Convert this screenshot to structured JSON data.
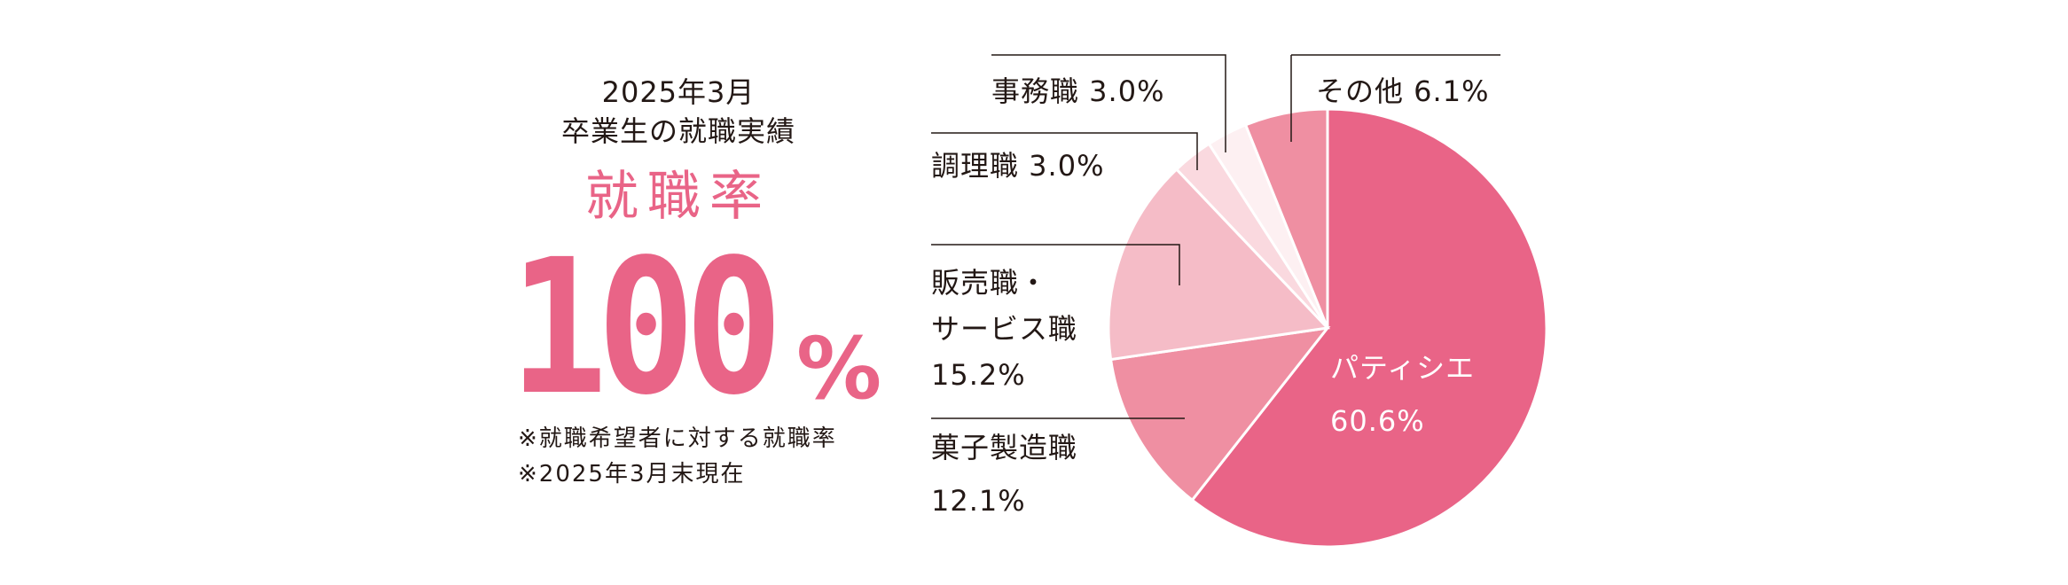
{
  "heading": {
    "line1": "2025年3月",
    "line2": "卒業生の就職実績"
  },
  "rate_label": "就職率",
  "rate_value": "100",
  "rate_unit": "%",
  "notes": [
    "※就職希望者に対する就職率",
    "※2025年3月末現在"
  ],
  "chart_data": {
    "type": "pie",
    "start_angle_deg": 0,
    "direction": "clockwise",
    "slices": [
      {
        "label_lines": [
          "パティシエ"
        ],
        "percent_text": "60.6%",
        "value": 60.6,
        "color": "#e96487",
        "label_inside": true
      },
      {
        "label_lines": [
          "菓子製造職"
        ],
        "percent_text": "12.1%",
        "value": 12.1,
        "color": "#ef8fa2"
      },
      {
        "label_lines": [
          "販売職・",
          "サービス職"
        ],
        "percent_text": "15.2%",
        "value": 15.2,
        "color": "#f5bcc7"
      },
      {
        "label_lines": [
          "調理職"
        ],
        "percent_text": "3.0%",
        "value": 3.0,
        "color": "#fad9df"
      },
      {
        "label_lines": [
          "事務職"
        ],
        "percent_text": "3.0%",
        "value": 3.0,
        "color": "#fdf0f2"
      },
      {
        "label_lines": [
          "その他"
        ],
        "percent_text": "6.1%",
        "value": 6.1,
        "color": "#ef8fa2"
      }
    ]
  }
}
